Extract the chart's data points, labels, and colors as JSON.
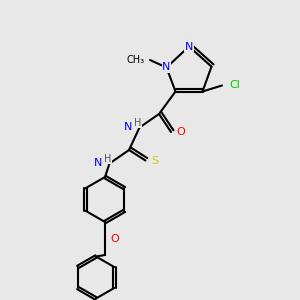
{
  "bg_color": "#e8e8e8",
  "bond_color": "#000000",
  "bond_width": 1.5,
  "atom_colors": {
    "N": "#0000ff",
    "O": "#ff0000",
    "S": "#cccc00",
    "Cl": "#00cc00",
    "C": "#000000",
    "H": "#666666"
  },
  "font_size": 8,
  "figsize": [
    3.0,
    3.0
  ],
  "dpi": 100
}
